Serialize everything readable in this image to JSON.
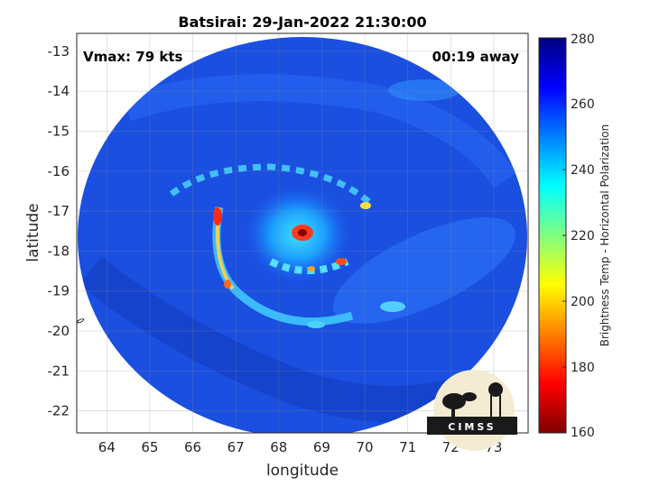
{
  "chart_data": {
    "type": "heatmap",
    "title": "Batsirai: 29-Jan-2022 21:30:00",
    "xlabel": "longitude",
    "ylabel": "latitude",
    "xlim": [
      63.3,
      73.8
    ],
    "ylim": [
      -22.55,
      -12.55
    ],
    "x_ticks": [
      64,
      65,
      66,
      67,
      68,
      69,
      70,
      71,
      72,
      73
    ],
    "y_ticks": [
      -13,
      -14,
      -15,
      -16,
      -17,
      -18,
      -19,
      -20,
      -21,
      -22
    ],
    "colorbar": {
      "label": "Brightness Temp - Horizontal Polarization",
      "range": [
        160,
        280
      ],
      "ticks": [
        280,
        260,
        240,
        220,
        200,
        180,
        160
      ],
      "colormap": "jet"
    },
    "annotations": {
      "vmax": "Vmax: 79 kts",
      "time_offset": "00:19 away"
    },
    "storm_center": {
      "lon": 68.3,
      "lat": -17.6
    },
    "grid": true,
    "logo": "CIMSS"
  }
}
